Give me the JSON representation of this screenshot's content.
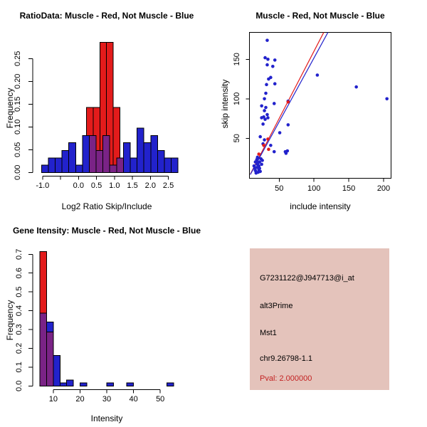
{
  "colors": {
    "red": "#E31B1B",
    "blue": "#2222CC",
    "overlap": "#7A2386",
    "axis": "#000000",
    "info_bg": "#E4C3BB",
    "pval_text": "#C32222"
  },
  "chart_data": [
    {
      "type": "histogram",
      "id": "ratio_hist",
      "title": "RatioData: Muscle - Red, Not Muscle - Blue",
      "xlabel": "Log2 Ratio Skip/Include",
      "ylabel": "Frequency",
      "legend_note": "Muscle shown red, Not Muscle shown blue, overlap purple",
      "xlim": [
        -1.2,
        2.9
      ],
      "ylim": [
        0,
        0.3
      ],
      "x_ticks": [
        {
          "v": -1.0,
          "label": "-1.0"
        },
        {
          "v": -0.5,
          "label": ""
        },
        {
          "v": 0.0,
          "label": "0.0"
        },
        {
          "v": 0.5,
          "label": "0.5"
        },
        {
          "v": 1.0,
          "label": "1.0"
        },
        {
          "v": 1.5,
          "label": "1.5"
        },
        {
          "v": 2.0,
          "label": "2.0"
        },
        {
          "v": 2.5,
          "label": "2.5"
        }
      ],
      "y_ticks": [
        {
          "v": 0.0,
          "label": "0.00"
        },
        {
          "v": 0.05,
          "label": "0.05"
        },
        {
          "v": 0.1,
          "label": "0.10"
        },
        {
          "v": 0.15,
          "label": "0.15"
        },
        {
          "v": 0.2,
          "label": "0.20"
        },
        {
          "v": 0.25,
          "label": "0.25"
        }
      ],
      "series": [
        {
          "name": "Not Muscle",
          "color_key": "blue",
          "bin_width": 0.19,
          "bars": [
            [
              -1.03,
              0.016
            ],
            [
              -0.84,
              0.032
            ],
            [
              -0.65,
              0.032
            ],
            [
              -0.46,
              0.048
            ],
            [
              -0.27,
              0.065
            ],
            [
              -0.08,
              0.016
            ],
            [
              0.11,
              0.081
            ],
            [
              0.3,
              0.081
            ],
            [
              0.49,
              0.048
            ],
            [
              0.68,
              0.081
            ],
            [
              0.87,
              0.016
            ],
            [
              1.06,
              0.032
            ],
            [
              1.25,
              0.065
            ],
            [
              1.44,
              0.032
            ],
            [
              1.63,
              0.097
            ],
            [
              1.82,
              0.065
            ],
            [
              2.01,
              0.081
            ],
            [
              2.2,
              0.048
            ],
            [
              2.39,
              0.032
            ],
            [
              2.58,
              0.032
            ]
          ]
        },
        {
          "name": "Muscle",
          "color_key": "red",
          "bin_width": 0.187,
          "bars": [
            [
              0.22,
              0.143
            ],
            [
              0.407,
              0.143
            ],
            [
              0.594,
              0.286
            ],
            [
              0.781,
              0.286
            ],
            [
              0.968,
              0.143
            ]
          ]
        }
      ]
    },
    {
      "type": "scatter",
      "id": "intensity_scatter",
      "title": "Muscle - Red, Not Muscle - Blue",
      "xlabel": "include intensity",
      "ylabel": "skip intensity",
      "xlim": [
        7.5,
        210.5
      ],
      "ylim": [
        -0.6,
        184
      ],
      "x_ticks": [
        50,
        100,
        150,
        200
      ],
      "y_ticks": [
        50,
        100,
        150
      ],
      "series": [
        {
          "name": "Not Muscle",
          "color_key": "blue",
          "points": [
            [
              32.8,
              174
            ],
            [
              29.8,
              152
            ],
            [
              33.8,
              150
            ],
            [
              32.8,
              143
            ],
            [
              43.8,
              149
            ],
            [
              40.8,
              141
            ],
            [
              37.8,
              127
            ],
            [
              34.8,
              125
            ],
            [
              43.8,
              119
            ],
            [
              31.8,
              118
            ],
            [
              30.8,
              107
            ],
            [
              28.8,
              100
            ],
            [
              24.8,
              91
            ],
            [
              30.8,
              89
            ],
            [
              42.8,
              94
            ],
            [
              28.8,
              85
            ],
            [
              32.8,
              80
            ],
            [
              33.8,
              76
            ],
            [
              27.8,
              77
            ],
            [
              24.8,
              76
            ],
            [
              29.8,
              74
            ],
            [
              26.8,
              68
            ],
            [
              62.8,
              97
            ],
            [
              104.8,
              130
            ],
            [
              160.8,
              115
            ],
            [
              204.8,
              100
            ],
            [
              62.8,
              67
            ],
            [
              50.8,
              57
            ],
            [
              22.8,
              52
            ],
            [
              28.8,
              48
            ],
            [
              26.8,
              43
            ],
            [
              37.8,
              41
            ],
            [
              42.8,
              33
            ],
            [
              58.8,
              33
            ],
            [
              61.8,
              34
            ],
            [
              59.8,
              31
            ],
            [
              18.8,
              26
            ],
            [
              23.8,
              24
            ],
            [
              15.8,
              20
            ],
            [
              18.8,
              17
            ],
            [
              24.8,
              17
            ],
            [
              13.8,
              15
            ],
            [
              17.8,
              13
            ],
            [
              21.8,
              12
            ],
            [
              15.8,
              9
            ],
            [
              19.8,
              7
            ],
            [
              20.8,
              10
            ],
            [
              16.8,
              6
            ],
            [
              22.8,
              8
            ],
            [
              25.8,
              22
            ],
            [
              21.8,
              20
            ],
            [
              19.8,
              19
            ],
            [
              17.8,
              23
            ],
            [
              20.8,
              15
            ],
            [
              14.8,
              12
            ]
          ]
        },
        {
          "name": "Muscle",
          "color_key": "red",
          "points": [
            [
              20.8,
              30
            ],
            [
              27.8,
              41
            ],
            [
              34.8,
              36
            ],
            [
              33.8,
              49
            ],
            [
              62.8,
              96
            ]
          ]
        }
      ],
      "fit_lines": [
        {
          "name": "Muscle fit",
          "color_key": "red",
          "x1": 8.5,
          "y1": 4.5,
          "x2": 114,
          "y2": 184
        },
        {
          "name": "Not Muscle fit",
          "color_key": "blue",
          "x1": 8.5,
          "y1": 4.0,
          "x2": 120,
          "y2": 184
        }
      ]
    },
    {
      "type": "histogram",
      "id": "gene_intensity_hist",
      "title": "Gene Itensity: Muscle - Red, Not Muscle - Blue",
      "xlabel": "Intensity",
      "ylabel": "Frequency",
      "legend_note": "Muscle shown red, Not Muscle shown blue, overlap purple",
      "xlim": [
        2.3,
        56
      ],
      "ylim": [
        0,
        0.72
      ],
      "x_ticks": [
        {
          "v": 10,
          "label": "10"
        },
        {
          "v": 20,
          "label": "20"
        },
        {
          "v": 30,
          "label": "30"
        },
        {
          "v": 40,
          "label": "40"
        },
        {
          "v": 50,
          "label": "50"
        }
      ],
      "y_ticks": [
        {
          "v": 0.0,
          "label": "0.0"
        },
        {
          "v": 0.1,
          "label": "0.1"
        },
        {
          "v": 0.2,
          "label": "0.2"
        },
        {
          "v": 0.3,
          "label": "0.3"
        },
        {
          "v": 0.4,
          "label": "0.4"
        },
        {
          "v": 0.5,
          "label": "0.5"
        },
        {
          "v": 0.6,
          "label": "0.6"
        },
        {
          "v": 0.7,
          "label": "0.7"
        }
      ],
      "series": [
        {
          "name": "Not Muscle",
          "color_key": "blue",
          "bin_width": 2.5,
          "bars": [
            [
              5,
              0.387
            ],
            [
              7.5,
              0.339
            ],
            [
              10,
              0.161
            ],
            [
              12.5,
              0.016
            ],
            [
              15,
              0.032
            ],
            [
              20,
              0.016
            ],
            [
              30,
              0.016
            ],
            [
              37.5,
              0.016
            ],
            [
              52.5,
              0.016
            ]
          ]
        },
        {
          "name": "Muscle",
          "color_key": "red",
          "bin_width": 2.5,
          "bars": [
            [
              5,
              0.714
            ],
            [
              7.5,
              0.286
            ]
          ]
        }
      ]
    }
  ],
  "info_panel": {
    "probe_id": "G7231122@J947713@i_at",
    "splice_type": "alt3Prime",
    "gene": "Mst1",
    "location": "chr9.26798-1.1",
    "pval": "Pval: 2.000000"
  }
}
